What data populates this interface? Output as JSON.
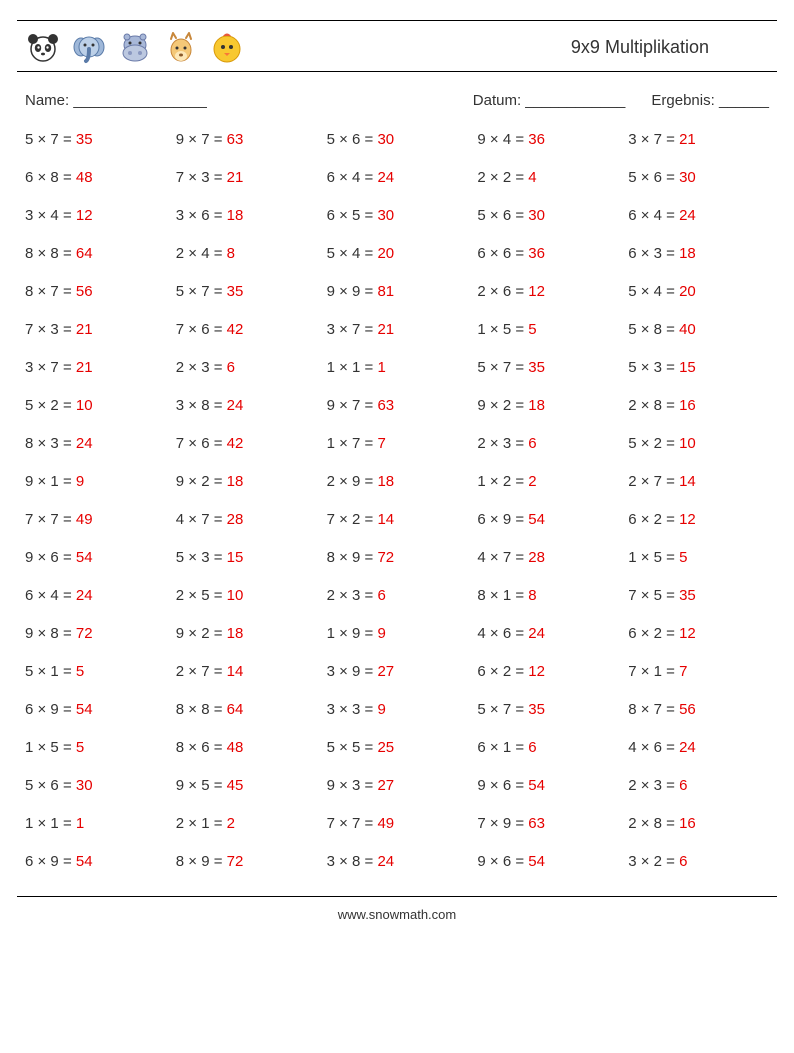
{
  "title": "9x9 Multiplikation",
  "name_label": "Name: ________________",
  "date_label": "Datum: ____________",
  "result_label": "Ergebnis: ______",
  "footer": "www.snowmath.com",
  "op": "×",
  "eq": "=",
  "answer_color": "#e60000",
  "question_color": "#333333",
  "columns": 5,
  "problems": [
    {
      "a": 5,
      "b": 7,
      "r": 35
    },
    {
      "a": 9,
      "b": 7,
      "r": 63
    },
    {
      "a": 5,
      "b": 6,
      "r": 30
    },
    {
      "a": 9,
      "b": 4,
      "r": 36
    },
    {
      "a": 3,
      "b": 7,
      "r": 21
    },
    {
      "a": 6,
      "b": 8,
      "r": 48
    },
    {
      "a": 7,
      "b": 3,
      "r": 21
    },
    {
      "a": 6,
      "b": 4,
      "r": 24
    },
    {
      "a": 2,
      "b": 2,
      "r": 4
    },
    {
      "a": 5,
      "b": 6,
      "r": 30
    },
    {
      "a": 3,
      "b": 4,
      "r": 12
    },
    {
      "a": 3,
      "b": 6,
      "r": 18
    },
    {
      "a": 6,
      "b": 5,
      "r": 30
    },
    {
      "a": 5,
      "b": 6,
      "r": 30
    },
    {
      "a": 6,
      "b": 4,
      "r": 24
    },
    {
      "a": 8,
      "b": 8,
      "r": 64
    },
    {
      "a": 2,
      "b": 4,
      "r": 8
    },
    {
      "a": 5,
      "b": 4,
      "r": 20
    },
    {
      "a": 6,
      "b": 6,
      "r": 36
    },
    {
      "a": 6,
      "b": 3,
      "r": 18
    },
    {
      "a": 8,
      "b": 7,
      "r": 56
    },
    {
      "a": 5,
      "b": 7,
      "r": 35
    },
    {
      "a": 9,
      "b": 9,
      "r": 81
    },
    {
      "a": 2,
      "b": 6,
      "r": 12
    },
    {
      "a": 5,
      "b": 4,
      "r": 20
    },
    {
      "a": 7,
      "b": 3,
      "r": 21
    },
    {
      "a": 7,
      "b": 6,
      "r": 42
    },
    {
      "a": 3,
      "b": 7,
      "r": 21
    },
    {
      "a": 1,
      "b": 5,
      "r": 5
    },
    {
      "a": 5,
      "b": 8,
      "r": 40
    },
    {
      "a": 3,
      "b": 7,
      "r": 21
    },
    {
      "a": 2,
      "b": 3,
      "r": 6
    },
    {
      "a": 1,
      "b": 1,
      "r": 1
    },
    {
      "a": 5,
      "b": 7,
      "r": 35
    },
    {
      "a": 5,
      "b": 3,
      "r": 15
    },
    {
      "a": 5,
      "b": 2,
      "r": 10
    },
    {
      "a": 3,
      "b": 8,
      "r": 24
    },
    {
      "a": 9,
      "b": 7,
      "r": 63
    },
    {
      "a": 9,
      "b": 2,
      "r": 18
    },
    {
      "a": 2,
      "b": 8,
      "r": 16
    },
    {
      "a": 8,
      "b": 3,
      "r": 24
    },
    {
      "a": 7,
      "b": 6,
      "r": 42
    },
    {
      "a": 1,
      "b": 7,
      "r": 7
    },
    {
      "a": 2,
      "b": 3,
      "r": 6
    },
    {
      "a": 5,
      "b": 2,
      "r": 10
    },
    {
      "a": 9,
      "b": 1,
      "r": 9
    },
    {
      "a": 9,
      "b": 2,
      "r": 18
    },
    {
      "a": 2,
      "b": 9,
      "r": 18
    },
    {
      "a": 1,
      "b": 2,
      "r": 2
    },
    {
      "a": 2,
      "b": 7,
      "r": 14
    },
    {
      "a": 7,
      "b": 7,
      "r": 49
    },
    {
      "a": 4,
      "b": 7,
      "r": 28
    },
    {
      "a": 7,
      "b": 2,
      "r": 14
    },
    {
      "a": 6,
      "b": 9,
      "r": 54
    },
    {
      "a": 6,
      "b": 2,
      "r": 12
    },
    {
      "a": 9,
      "b": 6,
      "r": 54
    },
    {
      "a": 5,
      "b": 3,
      "r": 15
    },
    {
      "a": 8,
      "b": 9,
      "r": 72
    },
    {
      "a": 4,
      "b": 7,
      "r": 28
    },
    {
      "a": 1,
      "b": 5,
      "r": 5
    },
    {
      "a": 6,
      "b": 4,
      "r": 24
    },
    {
      "a": 2,
      "b": 5,
      "r": 10
    },
    {
      "a": 2,
      "b": 3,
      "r": 6
    },
    {
      "a": 8,
      "b": 1,
      "r": 8
    },
    {
      "a": 7,
      "b": 5,
      "r": 35
    },
    {
      "a": 9,
      "b": 8,
      "r": 72
    },
    {
      "a": 9,
      "b": 2,
      "r": 18
    },
    {
      "a": 1,
      "b": 9,
      "r": 9
    },
    {
      "a": 4,
      "b": 6,
      "r": 24
    },
    {
      "a": 6,
      "b": 2,
      "r": 12
    },
    {
      "a": 5,
      "b": 1,
      "r": 5
    },
    {
      "a": 2,
      "b": 7,
      "r": 14
    },
    {
      "a": 3,
      "b": 9,
      "r": 27
    },
    {
      "a": 6,
      "b": 2,
      "r": 12
    },
    {
      "a": 7,
      "b": 1,
      "r": 7
    },
    {
      "a": 6,
      "b": 9,
      "r": 54
    },
    {
      "a": 8,
      "b": 8,
      "r": 64
    },
    {
      "a": 3,
      "b": 3,
      "r": 9
    },
    {
      "a": 5,
      "b": 7,
      "r": 35
    },
    {
      "a": 8,
      "b": 7,
      "r": 56
    },
    {
      "a": 1,
      "b": 5,
      "r": 5
    },
    {
      "a": 8,
      "b": 6,
      "r": 48
    },
    {
      "a": 5,
      "b": 5,
      "r": 25
    },
    {
      "a": 6,
      "b": 1,
      "r": 6
    },
    {
      "a": 4,
      "b": 6,
      "r": 24
    },
    {
      "a": 5,
      "b": 6,
      "r": 30
    },
    {
      "a": 9,
      "b": 5,
      "r": 45
    },
    {
      "a": 9,
      "b": 3,
      "r": 27
    },
    {
      "a": 9,
      "b": 6,
      "r": 54
    },
    {
      "a": 2,
      "b": 3,
      "r": 6
    },
    {
      "a": 1,
      "b": 1,
      "r": 1
    },
    {
      "a": 2,
      "b": 1,
      "r": 2
    },
    {
      "a": 7,
      "b": 7,
      "r": 49
    },
    {
      "a": 7,
      "b": 9,
      "r": 63
    },
    {
      "a": 2,
      "b": 8,
      "r": 16
    },
    {
      "a": 6,
      "b": 9,
      "r": 54
    },
    {
      "a": 8,
      "b": 9,
      "r": 72
    },
    {
      "a": 3,
      "b": 8,
      "r": 24
    },
    {
      "a": 9,
      "b": 6,
      "r": 54
    },
    {
      "a": 3,
      "b": 2,
      "r": 6
    }
  ]
}
